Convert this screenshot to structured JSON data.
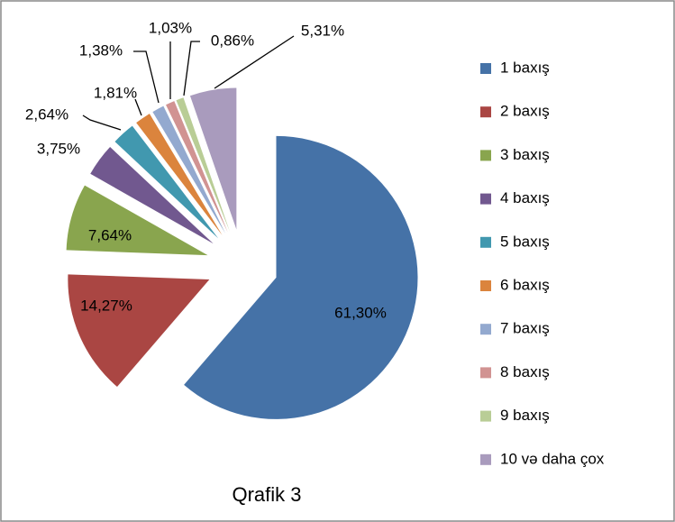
{
  "chart_data": {
    "type": "pie",
    "title": "Qrafik 3",
    "categories": [
      "1 baxış",
      "2 baxış",
      "3 baxış",
      "4 baxış",
      "5 baxış",
      "6 baxış",
      "7 baxış",
      "8 baxış",
      "9 baxış",
      "10 və daha çox"
    ],
    "values": [
      61.3,
      14.27,
      7.64,
      3.75,
      2.64,
      1.81,
      1.38,
      1.03,
      0.86,
      5.31
    ],
    "value_labels": [
      "61,30%",
      "14,27%",
      "7,64%",
      "3,75%",
      "2,64%",
      "1,81%",
      "1,38%",
      "1,03%",
      "0,86%",
      "5,31%"
    ],
    "colors": [
      "#4572A7",
      "#AA4643",
      "#89A54E",
      "#71588F",
      "#4198AF",
      "#DB843D",
      "#93A9CF",
      "#D19392",
      "#B9CD96",
      "#A99BBD"
    ],
    "legend": "right"
  }
}
